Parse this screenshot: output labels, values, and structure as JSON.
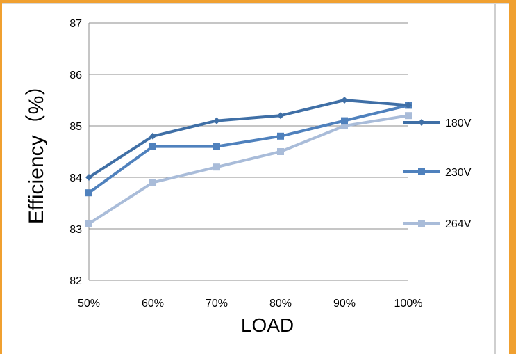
{
  "chart_data": {
    "type": "line",
    "title": "",
    "xlabel": "LOAD",
    "ylabel": "Efficiency（%）",
    "categories": [
      "50%",
      "60%",
      "70%",
      "80%",
      "90%",
      "100%"
    ],
    "yticks": [
      "82",
      "83",
      "84",
      "85",
      "86",
      "87"
    ],
    "ylim": [
      82,
      87
    ],
    "grid": "horizontal",
    "legend_placement": "right",
    "series": [
      {
        "name": "180V",
        "values": [
          84.0,
          84.8,
          85.1,
          85.2,
          85.5,
          85.4
        ],
        "color": "#3f6fa6",
        "marker": "diamond"
      },
      {
        "name": "230V",
        "values": [
          83.7,
          84.6,
          84.6,
          84.8,
          85.1,
          85.4
        ],
        "color": "#4f81bd",
        "marker": "square"
      },
      {
        "name": "264V",
        "values": [
          83.1,
          83.9,
          84.2,
          84.5,
          85.0,
          85.2
        ],
        "color": "#a9bcd9",
        "marker": "square"
      }
    ]
  },
  "frame": {
    "accent_color": "#f0a030"
  }
}
